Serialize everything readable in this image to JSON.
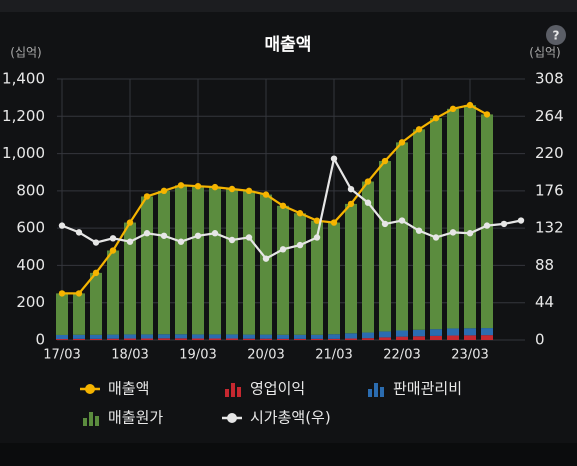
{
  "chart_data": {
    "type": "combo",
    "title": "매출액",
    "ylabel": "(십억)",
    "y2label": "(십억)",
    "categories": [
      "17/03",
      null,
      null,
      null,
      "18/03",
      null,
      null,
      null,
      "19/03",
      null,
      null,
      null,
      "20/03",
      null,
      null,
      null,
      "21/03",
      null,
      null,
      null,
      "22/03",
      null,
      null,
      null,
      "23/03",
      null,
      null,
      null
    ],
    "series": [
      {
        "name": "영업이익",
        "type": "bar",
        "color": "#c62830",
        "values": [
          5,
          6,
          6,
          7,
          8,
          8,
          9,
          9,
          8,
          8,
          8,
          7,
          7,
          6,
          6,
          6,
          6,
          8,
          10,
          14,
          18,
          20,
          22,
          24,
          25,
          26,
          null,
          null
        ]
      },
      {
        "name": "판매관리비",
        "type": "bar",
        "color": "#2b6cb0",
        "values": [
          22,
          22,
          22,
          22,
          22,
          22,
          22,
          22,
          22,
          22,
          22,
          22,
          22,
          22,
          22,
          22,
          25,
          28,
          30,
          32,
          33,
          35,
          36,
          38,
          38,
          38,
          null,
          null
        ]
      },
      {
        "name": "매출원가",
        "type": "bar",
        "color": "#5b8c3e",
        "values": [
          223,
          222,
          332,
          451,
          600,
          740,
          769,
          799,
          795,
          790,
          780,
          771,
          751,
          692,
          652,
          612,
          599,
          694,
          810,
          914,
          1009,
          1075,
          1132,
          1178,
          1197,
          1146,
          null,
          null
        ]
      },
      {
        "name": "매출액",
        "type": "line",
        "color": "#f5b400",
        "values": [
          250,
          250,
          360,
          480,
          630,
          770,
          800,
          830,
          825,
          820,
          810,
          800,
          780,
          720,
          680,
          640,
          630,
          730,
          850,
          960,
          1060,
          1130,
          1190,
          1240,
          1260,
          1210,
          null,
          null
        ]
      },
      {
        "name": "시가총액(우)",
        "type": "line",
        "axis": "y2",
        "color": "#e6e6e6",
        "values": [
          135,
          127,
          115,
          120,
          116,
          126,
          123,
          116,
          123,
          126,
          118,
          121,
          96,
          107,
          112,
          121,
          214,
          178,
          162,
          137,
          141,
          129,
          121,
          127,
          126,
          135,
          137,
          141
        ]
      }
    ],
    "ylim": [
      0,
      1400
    ],
    "yticks": [
      0,
      200,
      400,
      600,
      800,
      {
        "value": 1000,
        "label": "1,000"
      },
      {
        "value": 1200,
        "label": "1,200"
      },
      {
        "value": 1400,
        "label": "1,400"
      }
    ],
    "y2lim": [
      0,
      308
    ],
    "y2ticks": [
      0,
      44,
      88,
      132,
      176,
      220,
      264,
      308
    ],
    "grid": true
  },
  "help_button": "?"
}
